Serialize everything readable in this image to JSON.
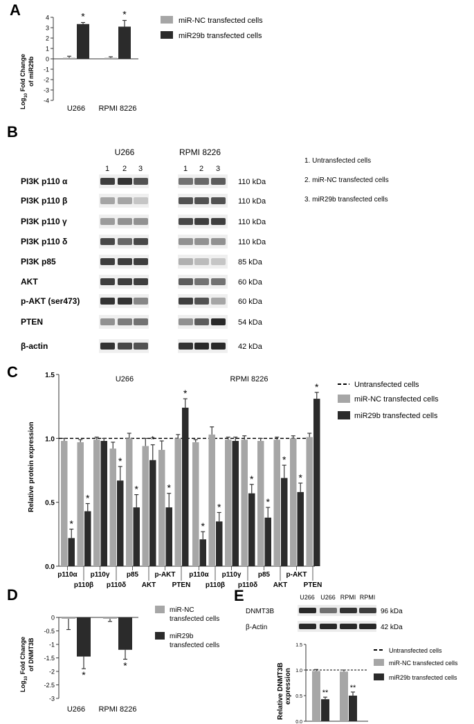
{
  "panels": {
    "A": {
      "letter": "A",
      "ylabel_main": "Log",
      "ylabel_sub": "10",
      "ylabel_rest": " Fold Change",
      "ylabel_line2": "of miR29b",
      "legend": [
        "miR-NC transfected cells",
        "miR29b transfected cells"
      ]
    },
    "B": {
      "letter": "B",
      "group_titles": [
        "U266",
        "RPMI 8226"
      ],
      "lane_numbers": [
        "1",
        "2",
        "3"
      ],
      "row_labels": [
        "PI3K p110 α",
        "PI3K p110 β",
        "PI3K p110 γ",
        "PI3K p110 δ",
        "PI3K p85",
        "AKT",
        "p-AKT (ser473)",
        "PTEN",
        "β-actin"
      ],
      "kda": [
        "110 kDa",
        "110 kDa",
        "110 kDa",
        "110 kDa",
        "85 kDa",
        "60 kDa",
        "60 kDa",
        "54 kDa",
        "42 kDa"
      ],
      "key": [
        "1. Untransfected cells",
        "2. miR-NC transfected cells",
        "3. miR29b transfected cells"
      ]
    },
    "C": {
      "letter": "C",
      "ylabel": "Relative protein expression",
      "group_titles": [
        "U266",
        "RPMI 8226"
      ],
      "legend": [
        "Untransfected cells",
        "miR-NC transfected cells",
        "miR29b transfected cells"
      ]
    },
    "D": {
      "letter": "D",
      "ylabel_main": "Log",
      "ylabel_sub": "10",
      "ylabel_rest": " Fold Change",
      "ylabel_line2": "of DNMT3B",
      "legend_nc": [
        "miR-NC",
        "transfected cells"
      ],
      "legend_29b": [
        "miR29b",
        "transfected cells"
      ]
    },
    "E": {
      "letter": "E",
      "lane_labels": [
        "U266",
        "U266",
        "RPMI",
        "RPMI"
      ],
      "blot_labels": [
        "DNMT3B",
        "β-Actin"
      ],
      "kda": [
        "96 kDa",
        "42 kDa"
      ],
      "ylabel_line1": "Relative DNMT3B",
      "ylabel_line2": "expression",
      "legend": [
        "Untransfected cells",
        "miR-NC transfected cells",
        "miR29b transfected cells"
      ]
    }
  },
  "colors": {
    "nc": "#a6a6a6",
    "mir29b": "#2b2b2b",
    "dashed": "#000000",
    "blot": "#1e1e1e"
  },
  "chart_data": [
    {
      "panel": "A",
      "type": "bar",
      "categories": [
        "U266",
        "RPMI 8226"
      ],
      "series": [
        {
          "name": "miR-NC transfected cells",
          "values": [
            0.1,
            0.1
          ],
          "errors": [
            0.15,
            0.1
          ]
        },
        {
          "name": "miR29b transfected cells",
          "values": [
            3.35,
            3.1
          ],
          "errors": [
            0.15,
            0.6
          ]
        }
      ],
      "significance": [
        "*",
        "*"
      ],
      "yticks": [
        4,
        3,
        2,
        1,
        0,
        -1,
        -2,
        -3,
        -4
      ],
      "ylim": [
        -4,
        4
      ],
      "grid": false
    },
    {
      "panel": "C",
      "type": "bar",
      "reference_line": 1.0,
      "groups": [
        "U266",
        "RPMI 8226"
      ],
      "categories": [
        "p110α",
        "p110β",
        "p110γ",
        "p110δ",
        "p85",
        "AKT",
        "p-AKT",
        "PTEN",
        "p110α",
        "p110β",
        "p110γ",
        "p110δ",
        "p85",
        "AKT",
        "p-AKT",
        "PTEN"
      ],
      "series": [
        {
          "name": "miR-NC transfected cells",
          "values": [
            0.98,
            0.97,
            0.99,
            0.92,
            1.0,
            0.94,
            0.91,
            1.0,
            0.97,
            1.03,
            0.99,
            0.99,
            0.98,
            0.99,
            1.0,
            1.01
          ],
          "errors": [
            0.02,
            0.02,
            0.02,
            0.05,
            0.04,
            0.06,
            0.07,
            0.03,
            0.02,
            0.06,
            0.02,
            0.03,
            0.02,
            0.02,
            0.02,
            0.03
          ]
        },
        {
          "name": "miR29b transfected cells",
          "values": [
            0.22,
            0.43,
            0.98,
            0.67,
            0.46,
            0.83,
            0.46,
            1.24,
            0.21,
            0.35,
            0.98,
            0.57,
            0.38,
            0.69,
            0.58,
            1.31
          ],
          "errors": [
            0.07,
            0.06,
            0.02,
            0.11,
            0.1,
            0.12,
            0.11,
            0.07,
            0.06,
            0.07,
            0.03,
            0.07,
            0.08,
            0.1,
            0.07,
            0.05
          ]
        }
      ],
      "significance": [
        "*",
        "*",
        "",
        "*",
        "*",
        "*",
        "*",
        "*",
        "*",
        "*",
        "",
        "*",
        "*",
        "*",
        "*",
        "*"
      ],
      "yticks": [
        "0.0",
        "0.5",
        "1.0",
        "1.5"
      ],
      "ylim": [
        0,
        1.5
      ],
      "grid": false
    },
    {
      "panel": "D",
      "type": "bar",
      "categories": [
        "U266",
        "RPMI 8226"
      ],
      "series": [
        {
          "name": "miR-NC transfected cells",
          "values": [
            -0.05,
            -0.05
          ],
          "errors": [
            0.4,
            0.1
          ]
        },
        {
          "name": "miR29b transfected cells",
          "values": [
            -1.45,
            -1.2
          ],
          "errors": [
            0.45,
            0.35
          ]
        }
      ],
      "significance": [
        "*",
        "*"
      ],
      "yticks": [
        "0",
        "-0.5",
        "-1",
        "-1.5",
        "-2",
        "-2.5",
        "-3"
      ],
      "ylim": [
        -3,
        0
      ],
      "grid": false
    },
    {
      "panel": "E",
      "type": "bar",
      "reference_line": 1.0,
      "categories": [
        "U266",
        "RPMI"
      ],
      "series": [
        {
          "name": "miR-NC transfected cells",
          "values": [
            0.98,
            0.97
          ],
          "errors": [
            0.03,
            0.03
          ]
        },
        {
          "name": "miR29b transfected cells",
          "values": [
            0.43,
            0.5
          ],
          "errors": [
            0.04,
            0.07
          ]
        }
      ],
      "significance": [
        "**",
        "**"
      ],
      "yticks": [
        "0.0",
        "0.5",
        "1.0",
        "1.5"
      ],
      "ylim": [
        0,
        1.5
      ],
      "grid": false
    }
  ]
}
